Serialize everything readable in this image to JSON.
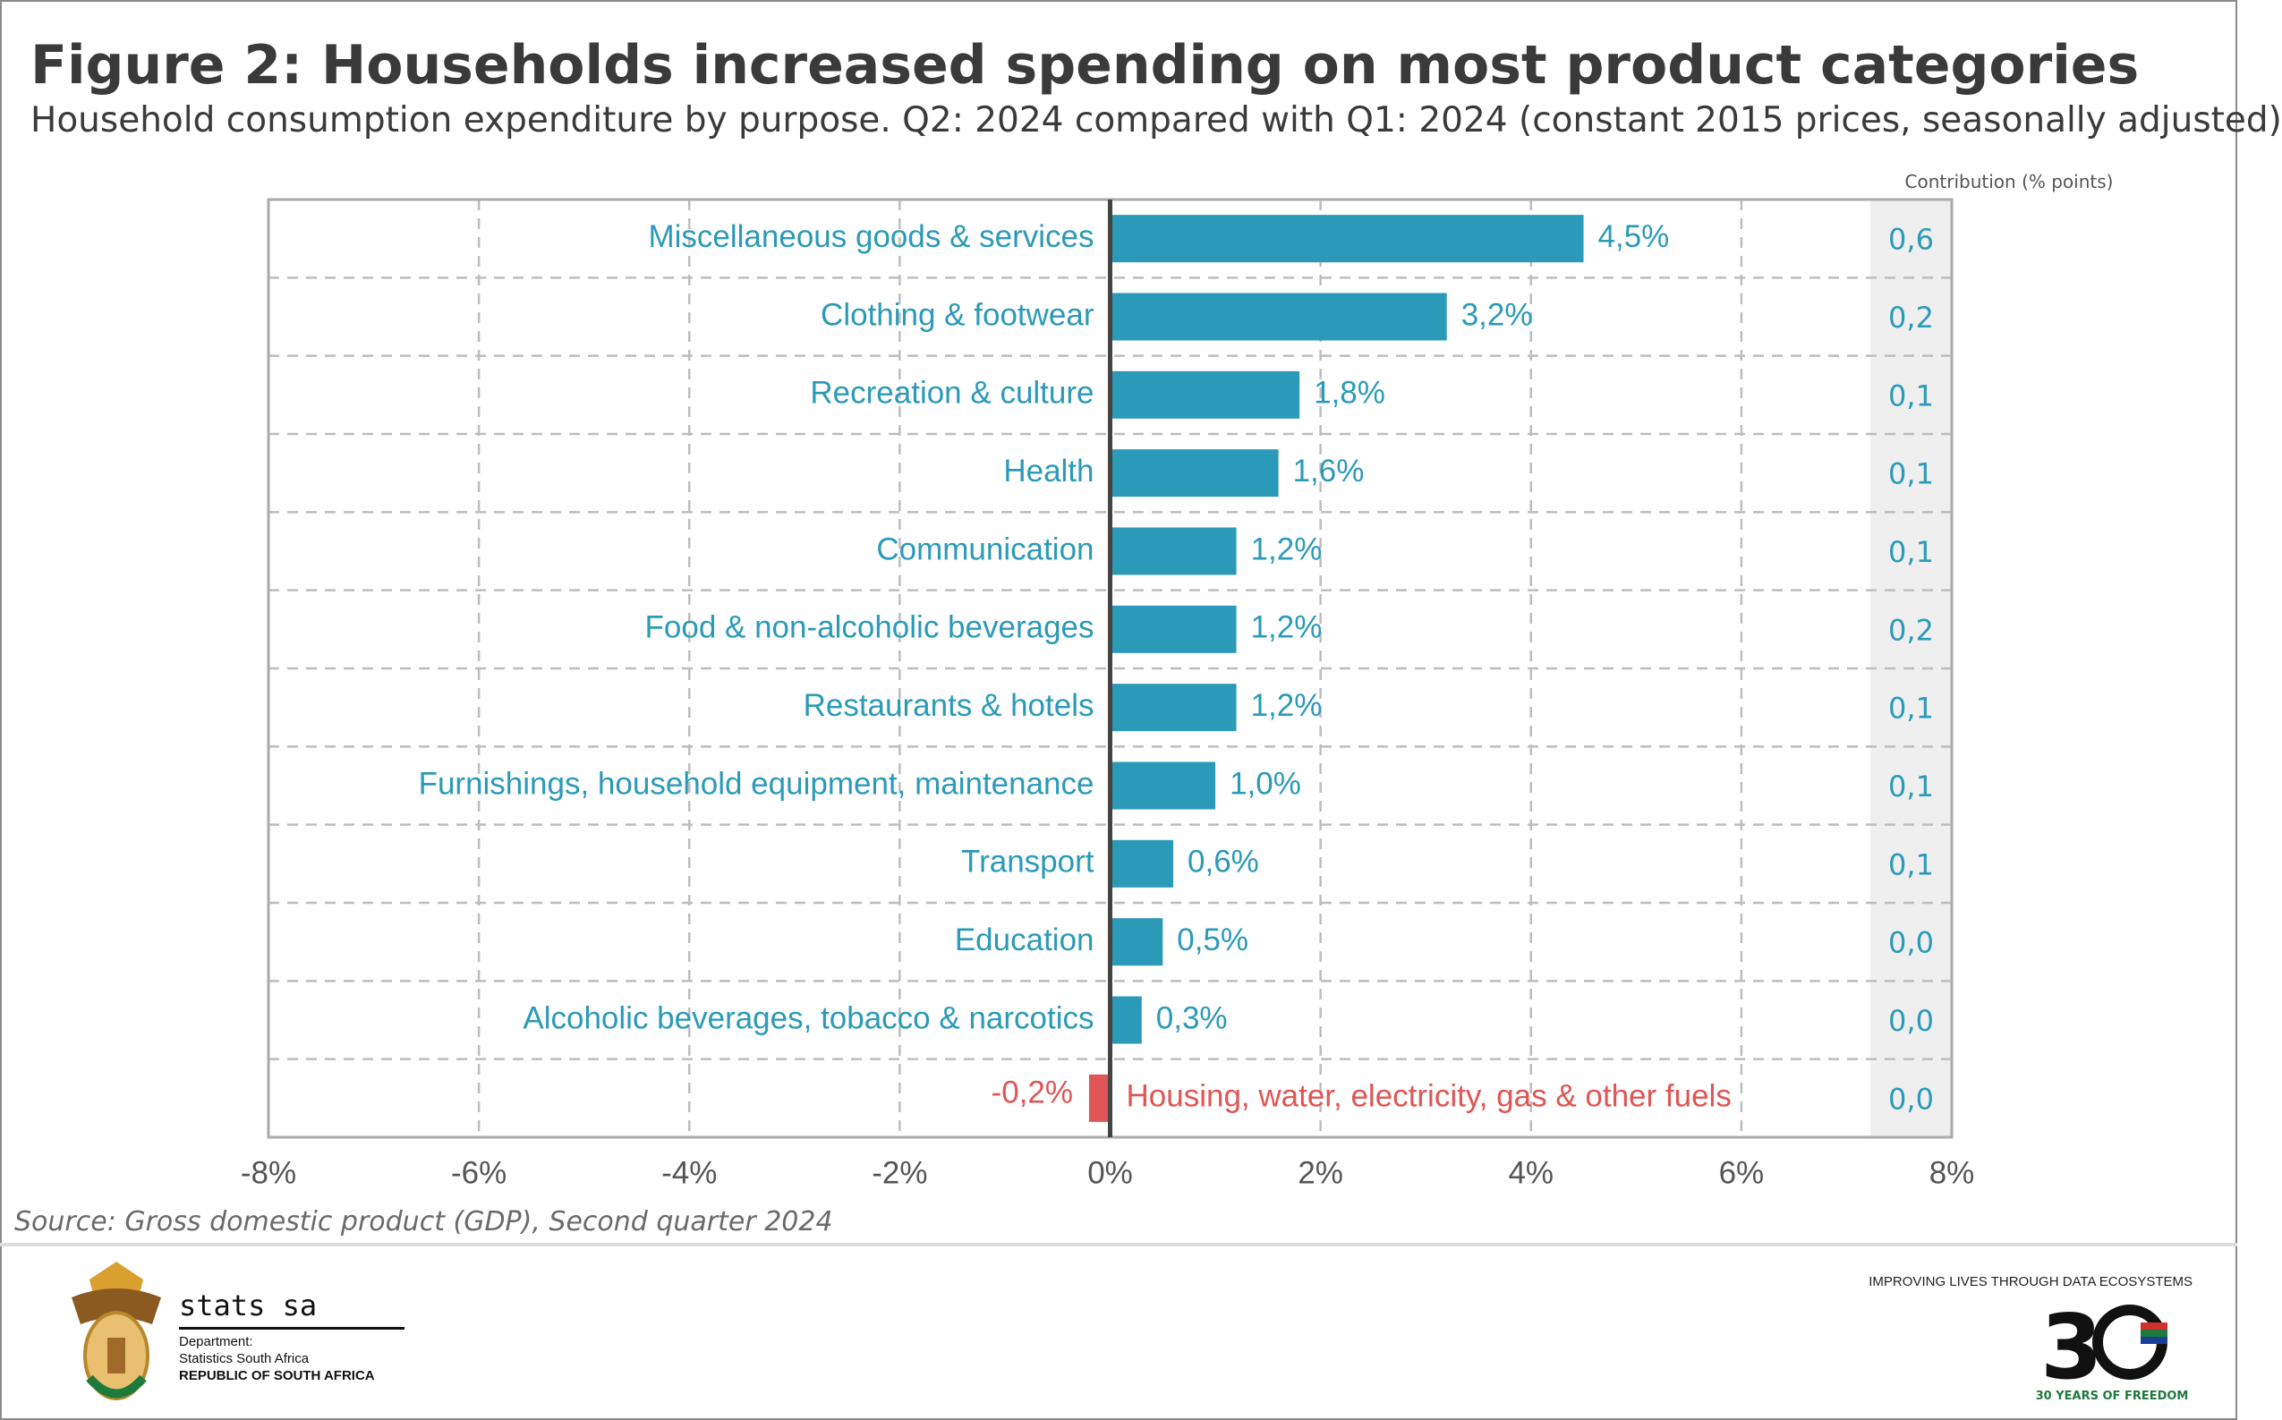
{
  "header": {
    "title": "Figure 2: Households increased spending on most product categories",
    "subtitle": "Household consumption expenditure by purpose. Q2: 2024 compared with Q1: 2024 (constant 2015 prices, seasonally adjusted)"
  },
  "chart_data": {
    "type": "bar",
    "orientation": "horizontal",
    "title": "Figure 2: Households increased spending on most product categories",
    "subtitle": "Household consumption expenditure by purpose. Q2: 2024 compared with Q1: 2024 (constant 2015 prices, seasonally adjusted)",
    "xlim": [
      -8,
      8
    ],
    "x_ticks": [
      "-8%",
      "-6%",
      "-4%",
      "-2%",
      "0%",
      "2%",
      "4%",
      "6%",
      "8%"
    ],
    "grid": true,
    "categories": [
      "Miscellaneous goods & services",
      "Clothing & footwear",
      "Recreation & culture",
      "Health",
      "Communication",
      "Food & non-alcoholic beverages",
      "Restaurants & hotels",
      "Furnishings, household equipment, maintenance",
      "Transport",
      "Education",
      "Alcoholic beverages, tobacco & narcotics",
      "Housing, water, electricity, gas & other fuels"
    ],
    "values": [
      4.5,
      3.2,
      1.8,
      1.6,
      1.2,
      1.2,
      1.2,
      1.0,
      0.6,
      0.5,
      0.3,
      -0.2
    ],
    "value_labels": [
      "4,5%",
      "3,2%",
      "1,8%",
      "1,6%",
      "1,2%",
      "1,2%",
      "1,2%",
      "1,0%",
      "0,6%",
      "0,5%",
      "0,3%",
      "-0,2%"
    ],
    "contribution_header": "Contribution (% points)",
    "contributions": [
      "0,6",
      "0,2",
      "0,1",
      "0,1",
      "0,1",
      "0,2",
      "0,1",
      "0,1",
      "0,1",
      "0,0",
      "0,0",
      "0,0"
    ],
    "colors": {
      "positive": "#2b9ab8",
      "negative": "#e05555",
      "zero_line": "#444444",
      "contribution_bg": "#efefef"
    }
  },
  "footer": {
    "source": "Source: Gross domestic product (GDP), Second quarter 2024",
    "org_name": "stats sa",
    "dept_label": "Department:",
    "dept_name": "Statistics South Africa",
    "country": "REPUBLIC OF SOUTH AFRICA",
    "tagline": "IMPROVING LIVES THROUGH DATA ECOSYSTEMS",
    "anniversary_logo_text": "30 YEARS OF FREEDOM"
  }
}
